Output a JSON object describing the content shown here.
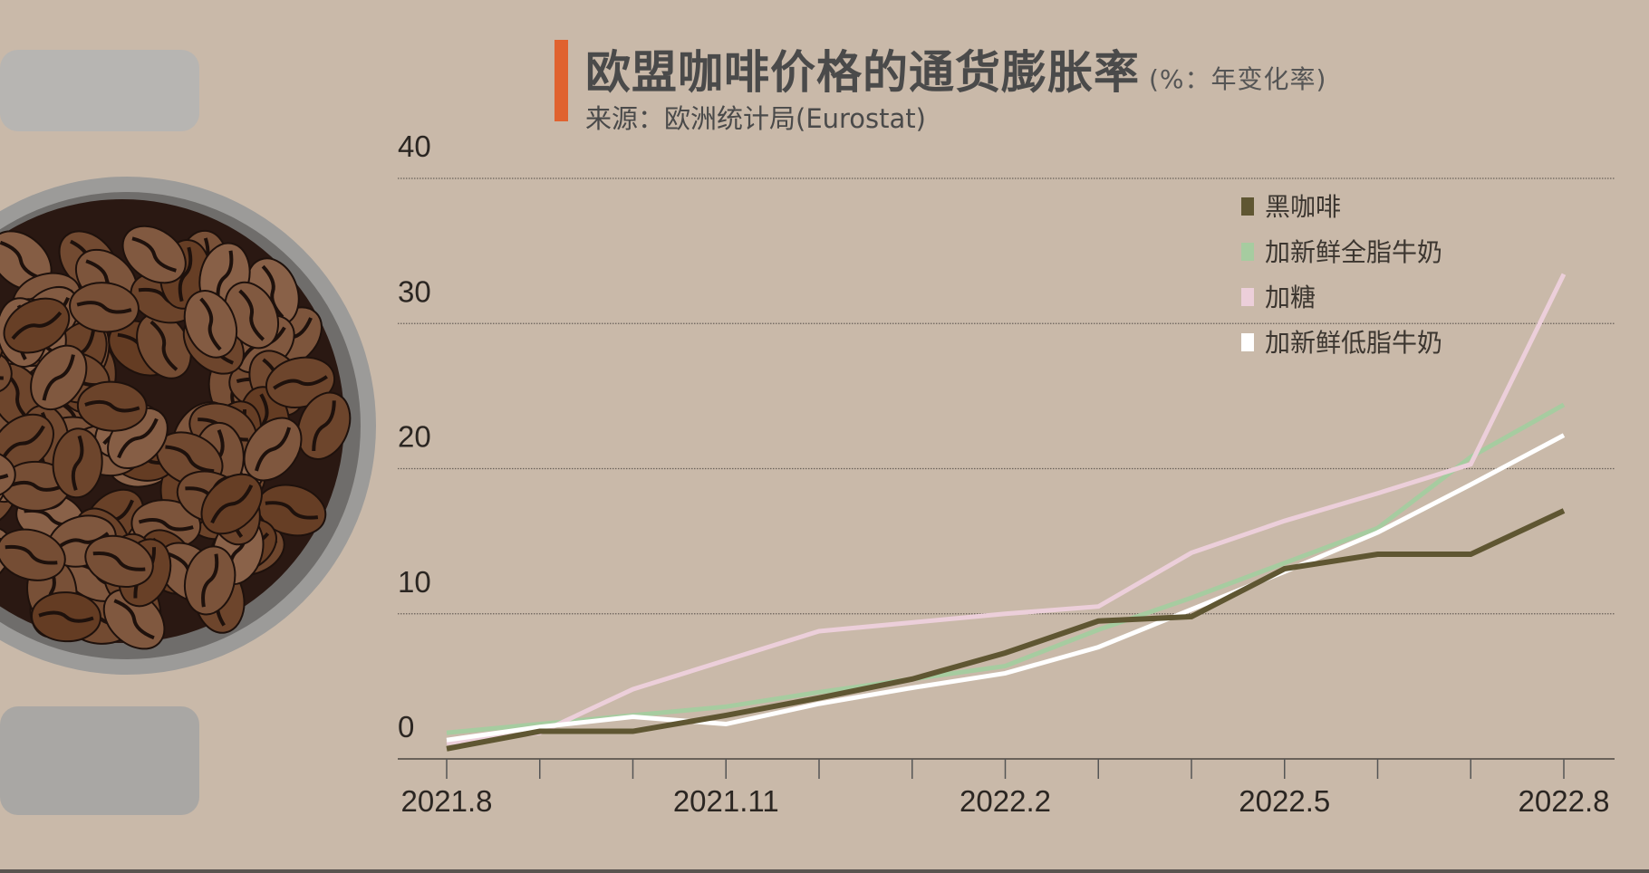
{
  "header": {
    "title": "欧盟咖啡价格的通货膨胀率",
    "unit": "(%：年变化率)",
    "source": "来源：欧洲统计局(Eurostat)"
  },
  "colors": {
    "accent_bar": "#e0622f",
    "background": "#c9b9a9"
  },
  "chart_data": {
    "type": "line",
    "title": "欧盟咖啡价格的通货膨胀率",
    "subtitle": "(%：年变化率)",
    "xlabel": "",
    "ylabel": "",
    "x": [
      "2021.8",
      "2021.9",
      "2021.10",
      "2021.11",
      "2021.12",
      "2022.1",
      "2022.2",
      "2022.3",
      "2022.4",
      "2022.5",
      "2022.6",
      "2022.7",
      "2022.8"
    ],
    "x_tick_labels": [
      "2021.8",
      "2021.11",
      "2022.2",
      "2022.5",
      "2022.8"
    ],
    "y_tick_labels": [
      "0",
      "10",
      "20",
      "30",
      "40"
    ],
    "ylim": [
      0,
      40
    ],
    "grid": "horizontal dotted",
    "legend_position": "top-right",
    "series": [
      {
        "name": "黑咖啡",
        "color": "#5f5632",
        "values": [
          0.7,
          1.9,
          1.9,
          3.0,
          4.2,
          5.5,
          7.3,
          9.5,
          9.8,
          13.1,
          14.1,
          14.1,
          17.1
        ]
      },
      {
        "name": "加新鲜全脂牛奶",
        "color": "#a6cca0",
        "values": [
          1.8,
          2.4,
          3.0,
          3.6,
          4.6,
          5.5,
          6.4,
          8.9,
          11.1,
          13.5,
          15.9,
          20.8,
          24.4
        ]
      },
      {
        "name": "加糖",
        "color": "#eccfda",
        "values": [
          1.1,
          1.8,
          4.8,
          6.8,
          8.8,
          9.4,
          10.0,
          10.5,
          14.2,
          16.4,
          18.3,
          20.3,
          33.4
        ]
      },
      {
        "name": "加新鲜低脂牛奶",
        "color": "#ffffff",
        "values": [
          1.3,
          2.2,
          2.9,
          2.4,
          3.8,
          4.9,
          5.9,
          7.7,
          10.3,
          12.9,
          15.6,
          18.9,
          22.3
        ]
      }
    ]
  }
}
